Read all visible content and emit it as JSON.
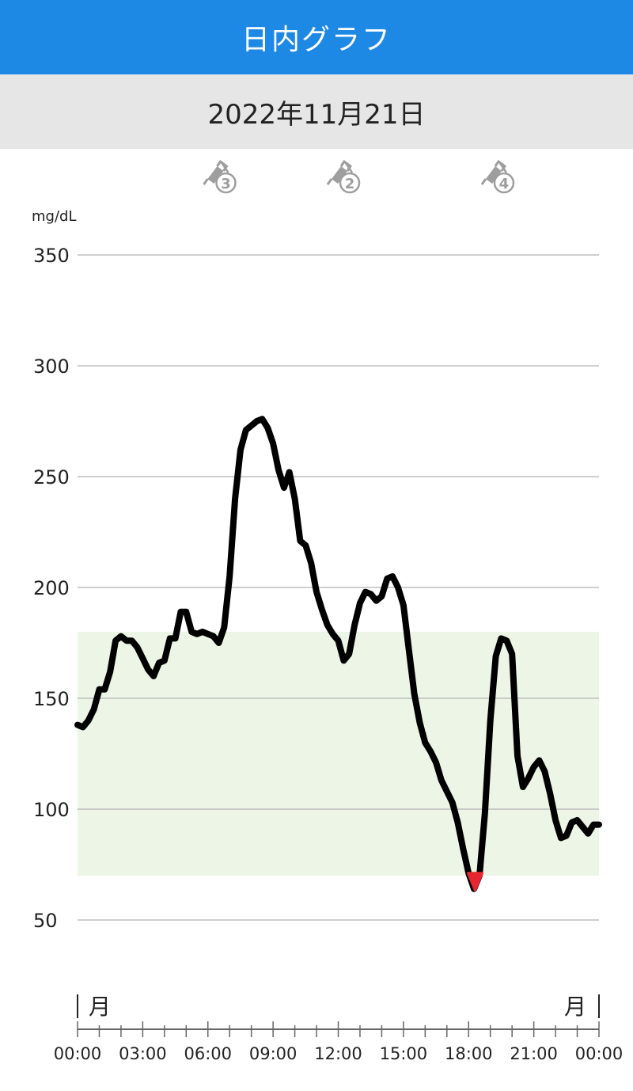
{
  "header": {
    "title": "日内グラフ"
  },
  "date_label": "2022年11月21日",
  "colors": {
    "header_bg": "#1e88e5",
    "date_bg": "#e6e6e6",
    "target_band": "#edf5e6",
    "line": "#000000",
    "low_marker": "#e8262f",
    "icon": "#9e9e9e"
  },
  "insulin_events": [
    {
      "icon": "insulin-pen-icon",
      "units": "3",
      "time_hours": 6.5
    },
    {
      "icon": "insulin-pen-icon",
      "units": "2",
      "time_hours": 12.2
    },
    {
      "icon": "insulin-pen-icon",
      "units": "4",
      "time_hours": 19.3
    }
  ],
  "day_labels": {
    "start": "月",
    "end": "月"
  },
  "chart_data": {
    "type": "line",
    "title": "",
    "ylabel": "mg/dL",
    "xlabel": "",
    "ylim": [
      50,
      350
    ],
    "yticks": [
      "50",
      "100",
      "150",
      "200",
      "250",
      "300",
      "350"
    ],
    "xlim_hours": [
      0,
      24
    ],
    "xticks": [
      "00:00",
      "03:00",
      "06:00",
      "09:00",
      "12:00",
      "15:00",
      "18:00",
      "21:00",
      "00:00"
    ],
    "target_range": [
      70,
      180
    ],
    "grid": true,
    "low_point": {
      "x_hours": 18.3,
      "y": 64
    },
    "series": [
      {
        "x_hours": [
          0,
          0.25,
          0.5,
          0.75,
          1.0,
          1.25,
          1.5,
          1.75,
          2.0,
          2.25,
          2.5,
          2.75,
          3.0,
          3.25,
          3.5,
          3.75,
          4.0,
          4.25,
          4.5,
          4.75,
          5.0,
          5.25,
          5.5,
          5.75,
          6.0,
          6.25,
          6.5,
          6.75,
          7.0,
          7.25,
          7.5,
          7.75,
          8.0,
          8.25,
          8.5,
          8.75,
          9.0,
          9.25,
          9.5,
          9.75,
          10.0,
          10.25,
          10.5,
          10.75,
          11.0,
          11.25,
          11.5,
          11.75,
          12.0,
          12.25,
          12.5,
          12.75,
          13.0,
          13.25,
          13.5,
          13.75,
          14.0,
          14.25,
          14.5,
          14.75,
          15.0,
          15.25,
          15.5,
          15.75,
          16.0,
          16.25,
          16.5,
          16.75,
          17.0,
          17.25,
          17.5,
          17.75,
          18.0,
          18.25,
          18.5,
          18.75,
          19.0,
          19.25,
          19.5,
          19.75,
          20.0,
          20.25,
          20.5,
          20.75,
          21.0,
          21.25,
          21.5,
          21.75,
          22.0,
          22.25,
          22.5,
          22.75,
          23.0,
          23.25,
          23.5,
          23.75,
          24.0
        ],
        "values": [
          138,
          137,
          140,
          145,
          154,
          154,
          162,
          176,
          178,
          176,
          176,
          173,
          168,
          163,
          160,
          166,
          167,
          177,
          177,
          189,
          189,
          180,
          179,
          180,
          179,
          178,
          175,
          182,
          205,
          240,
          262,
          271,
          273,
          275,
          276,
          272,
          265,
          253,
          245,
          252,
          240,
          221,
          219,
          211,
          198,
          190,
          183,
          179,
          176,
          167,
          170,
          183,
          193,
          198,
          197,
          194,
          196,
          204,
          205,
          200,
          192,
          172,
          152,
          139,
          130,
          126,
          121,
          113,
          108,
          103,
          94,
          82,
          71,
          64,
          70,
          98,
          140,
          169,
          177,
          176,
          170,
          124,
          110,
          114,
          119,
          122,
          117,
          107,
          95,
          87,
          88,
          94,
          95,
          92,
          89,
          93,
          93
        ]
      }
    ]
  }
}
